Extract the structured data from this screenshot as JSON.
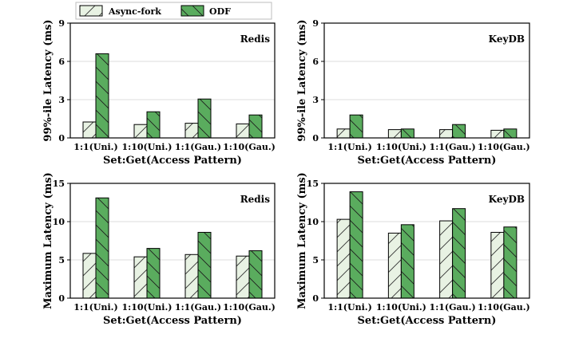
{
  "legend": {
    "items": [
      {
        "label": "Async-fork",
        "color": "#e8f2e3"
      },
      {
        "label": "ODF",
        "color": "#5aac5e"
      }
    ]
  },
  "chart_data": [
    {
      "type": "bar",
      "title": "Redis",
      "xlabel": "Set:Get(Access Pattern)",
      "ylabel": "99%-ile Latency (ms)",
      "ylim": [
        0,
        9
      ],
      "yticks": [
        0,
        3,
        6,
        9
      ],
      "grid": true,
      "categories": [
        "1:1(Uni.)",
        "1:10(Uni.)",
        "1:1(Gau.)",
        "1:10(Gau.)"
      ],
      "series": [
        {
          "name": "Async-fork",
          "values": [
            1.25,
            1.05,
            1.15,
            1.1
          ]
        },
        {
          "name": "ODF",
          "values": [
            6.6,
            2.05,
            3.05,
            1.8
          ]
        }
      ]
    },
    {
      "type": "bar",
      "title": "KeyDB",
      "xlabel": "Set:Get(Access Pattern)",
      "ylabel": "99%-ile Latency (ms)",
      "ylim": [
        0,
        9
      ],
      "yticks": [
        0,
        3,
        6,
        9
      ],
      "grid": true,
      "categories": [
        "1:1(Uni.)",
        "1:10(Uni.)",
        "1:1(Gau.)",
        "1:10(Gau.)"
      ],
      "series": [
        {
          "name": "Async-fork",
          "values": [
            0.7,
            0.65,
            0.65,
            0.6
          ]
        },
        {
          "name": "ODF",
          "values": [
            1.8,
            0.7,
            1.05,
            0.7
          ]
        }
      ]
    },
    {
      "type": "bar",
      "title": "Redis",
      "xlabel": "Set:Get(Access Pattern)",
      "ylabel": "Maximum Latency (ms)",
      "ylim": [
        0,
        15
      ],
      "yticks": [
        0,
        5,
        10,
        15
      ],
      "grid": true,
      "categories": [
        "1:1(Uni.)",
        "1:10(Uni.)",
        "1:1(Gau.)",
        "1:10(Gau.)"
      ],
      "series": [
        {
          "name": "Async-fork",
          "values": [
            5.85,
            5.4,
            5.7,
            5.5
          ]
        },
        {
          "name": "ODF",
          "values": [
            13.1,
            6.5,
            8.6,
            6.2
          ]
        }
      ]
    },
    {
      "type": "bar",
      "title": "KeyDB",
      "xlabel": "Set:Get(Access Pattern)",
      "ylabel": "Maximum Latency (ms)",
      "ylim": [
        0,
        15
      ],
      "yticks": [
        0,
        5,
        10,
        15
      ],
      "grid": true,
      "categories": [
        "1:1(Uni.)",
        "1:10(Uni.)",
        "1:1(Gau.)",
        "1:10(Gau.)"
      ],
      "series": [
        {
          "name": "Async-fork",
          "values": [
            10.3,
            8.5,
            10.1,
            8.6
          ]
        },
        {
          "name": "ODF",
          "values": [
            13.9,
            9.6,
            11.7,
            9.3
          ]
        }
      ]
    }
  ]
}
